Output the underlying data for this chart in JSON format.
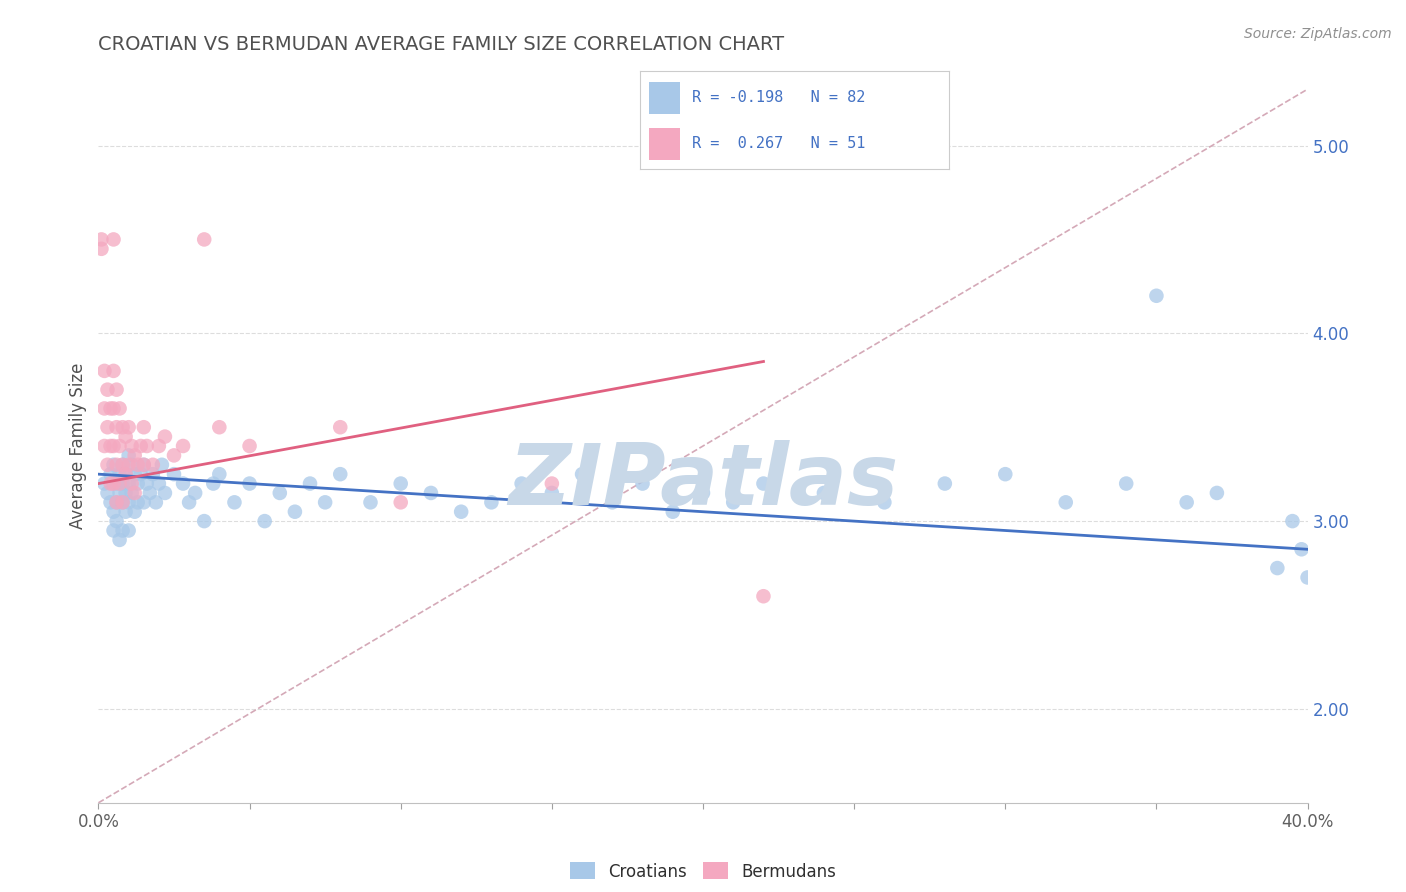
{
  "title": "CROATIAN VS BERMUDAN AVERAGE FAMILY SIZE CORRELATION CHART",
  "source_text": "Source: ZipAtlas.com",
  "ylabel": "Average Family Size",
  "xlim": [
    0.0,
    0.4
  ],
  "ylim": [
    1.5,
    5.3
  ],
  "yticks": [
    2.0,
    3.0,
    4.0,
    5.0
  ],
  "xticks": [
    0.0,
    0.05,
    0.1,
    0.15,
    0.2,
    0.25,
    0.3,
    0.35,
    0.4
  ],
  "xtick_labels": [
    "0.0%",
    "",
    "",
    "",
    "",
    "",
    "",
    "",
    "40.0%"
  ],
  "croatian_R": -0.198,
  "croatian_N": 82,
  "bermudan_R": 0.267,
  "bermudan_N": 51,
  "croatian_color": "#A8C8E8",
  "bermudan_color": "#F4A8C0",
  "croatian_line_color": "#4472C4",
  "bermudan_line_color": "#E06080",
  "ref_line_color": "#D0A0B0",
  "watermark_text": "ZIPatlas",
  "watermark_color": "#C8D8E8",
  "title_color": "#505050",
  "axis_label_color": "#4472C4",
  "background_color": "#FFFFFF",
  "grid_color": "#DDDDDD",
  "croatian_x": [
    0.002,
    0.003,
    0.004,
    0.004,
    0.005,
    0.005,
    0.005,
    0.006,
    0.006,
    0.006,
    0.007,
    0.007,
    0.007,
    0.008,
    0.008,
    0.008,
    0.008,
    0.009,
    0.009,
    0.009,
    0.01,
    0.01,
    0.01,
    0.01,
    0.011,
    0.011,
    0.012,
    0.012,
    0.013,
    0.013,
    0.014,
    0.015,
    0.015,
    0.016,
    0.017,
    0.018,
    0.019,
    0.02,
    0.021,
    0.022,
    0.025,
    0.028,
    0.03,
    0.032,
    0.035,
    0.038,
    0.04,
    0.045,
    0.05,
    0.055,
    0.06,
    0.065,
    0.07,
    0.075,
    0.08,
    0.09,
    0.1,
    0.11,
    0.12,
    0.13,
    0.14,
    0.15,
    0.16,
    0.17,
    0.18,
    0.19,
    0.2,
    0.21,
    0.22,
    0.24,
    0.26,
    0.28,
    0.3,
    0.32,
    0.34,
    0.35,
    0.36,
    0.37,
    0.39,
    0.395,
    0.398,
    0.4
  ],
  "croatian_y": [
    3.2,
    3.15,
    3.1,
    3.25,
    3.3,
    3.05,
    2.95,
    3.2,
    3.1,
    3.0,
    3.25,
    3.15,
    2.9,
    3.3,
    3.2,
    3.1,
    2.95,
    3.25,
    3.15,
    3.05,
    3.35,
    3.2,
    3.1,
    2.95,
    3.3,
    3.15,
    3.25,
    3.05,
    3.2,
    3.1,
    3.25,
    3.3,
    3.1,
    3.2,
    3.15,
    3.25,
    3.1,
    3.2,
    3.3,
    3.15,
    3.25,
    3.2,
    3.1,
    3.15,
    3.0,
    3.2,
    3.25,
    3.1,
    3.2,
    3.0,
    3.15,
    3.05,
    3.2,
    3.1,
    3.25,
    3.1,
    3.2,
    3.15,
    3.05,
    3.1,
    3.2,
    3.15,
    3.25,
    3.1,
    3.2,
    3.05,
    3.15,
    3.1,
    3.2,
    3.15,
    3.1,
    3.2,
    3.25,
    3.1,
    3.2,
    4.2,
    3.1,
    3.15,
    2.75,
    3.0,
    2.85,
    2.7
  ],
  "bermudan_x": [
    0.001,
    0.001,
    0.002,
    0.002,
    0.002,
    0.003,
    0.003,
    0.003,
    0.004,
    0.004,
    0.004,
    0.005,
    0.005,
    0.005,
    0.005,
    0.005,
    0.006,
    0.006,
    0.006,
    0.006,
    0.007,
    0.007,
    0.007,
    0.008,
    0.008,
    0.008,
    0.009,
    0.009,
    0.01,
    0.01,
    0.011,
    0.011,
    0.012,
    0.012,
    0.013,
    0.014,
    0.015,
    0.015,
    0.016,
    0.018,
    0.02,
    0.022,
    0.025,
    0.028,
    0.035,
    0.04,
    0.05,
    0.08,
    0.1,
    0.15,
    0.22
  ],
  "bermudan_y": [
    4.5,
    4.45,
    3.8,
    3.6,
    3.4,
    3.7,
    3.5,
    3.3,
    3.6,
    3.4,
    3.2,
    4.5,
    3.8,
    3.6,
    3.4,
    3.2,
    3.7,
    3.5,
    3.3,
    3.1,
    3.6,
    3.4,
    3.2,
    3.5,
    3.3,
    3.1,
    3.45,
    3.25,
    3.5,
    3.3,
    3.4,
    3.2,
    3.35,
    3.15,
    3.3,
    3.4,
    3.5,
    3.3,
    3.4,
    3.3,
    3.4,
    3.45,
    3.35,
    3.4,
    4.5,
    3.5,
    3.4,
    3.5,
    3.1,
    3.2,
    2.6
  ]
}
